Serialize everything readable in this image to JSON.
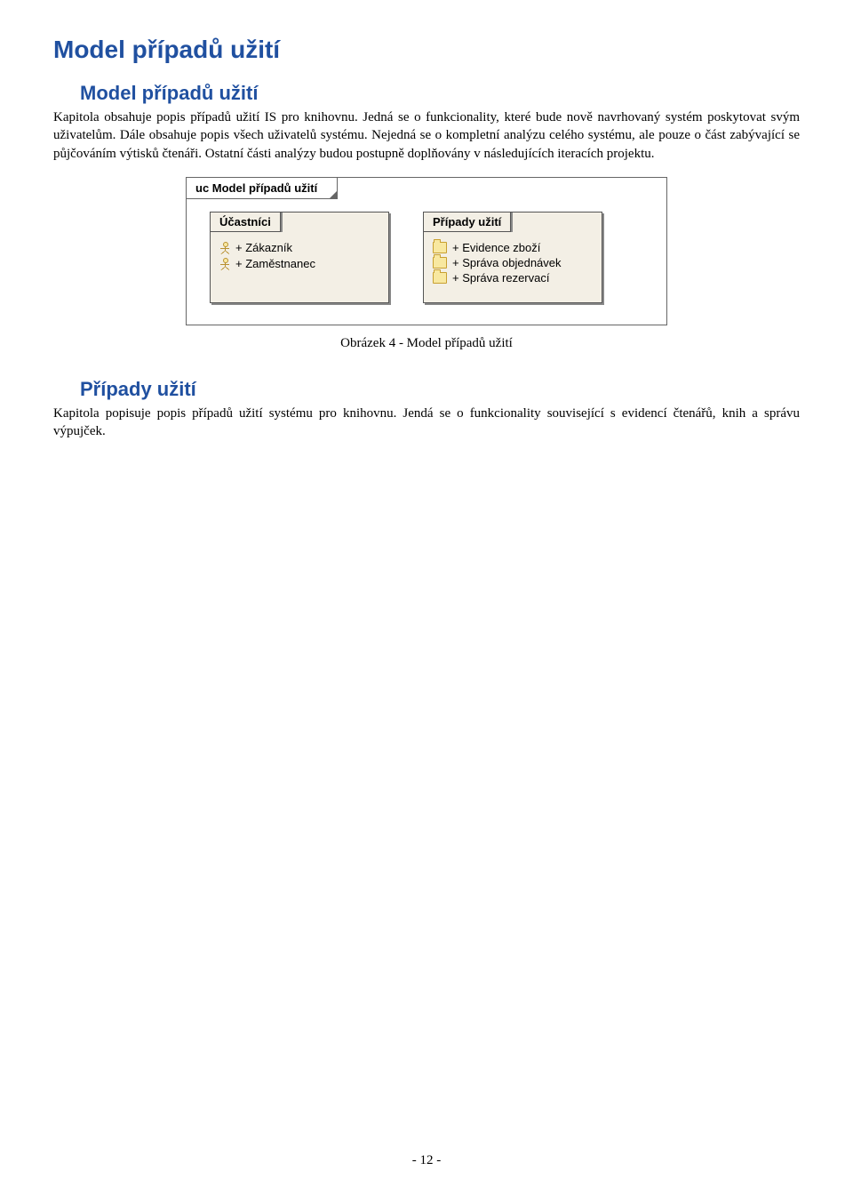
{
  "title": "Model případů užití",
  "section1": {
    "heading": "Model případů užití",
    "paragraph": "Kapitola obsahuje popis případů užití IS pro knihovnu. Jedná se o funkcionality, které bude nově navrhovaný systém poskytovat svým uživatelům. Dále obsahuje popis všech uživatelů systému. Nejedná se o kompletní analýzu celého systému, ale pouze o část zabývající se půjčováním výtisků čtenáři. Ostatní části analýzy budou postupně doplňovány v následujících iteracích projektu."
  },
  "diagram": {
    "frame_label": "uc Model případů užití",
    "packages": [
      {
        "name": "Účastníci",
        "items": [
          {
            "icon": "actor",
            "label": "+ Zákazník"
          },
          {
            "icon": "actor",
            "label": "+ Zaměstnanec"
          }
        ]
      },
      {
        "name": "Případy užití",
        "items": [
          {
            "icon": "folder",
            "label": "+ Evidence zboží"
          },
          {
            "icon": "folder",
            "label": "+ Správa objednávek"
          },
          {
            "icon": "folder",
            "label": "+ Správa rezervací"
          }
        ]
      }
    ],
    "caption": "Obrázek 4 - Model případů užití",
    "colors": {
      "heading_color": "#2050a0",
      "package_bg": "#f3efe5",
      "package_border": "#555555",
      "icon_fill": "#f8e8a0",
      "icon_stroke": "#c8a030"
    }
  },
  "section2": {
    "heading": "Případy užití",
    "paragraph": "Kapitola popisuje popis případů užití systému pro knihovnu. Jendá se o funkcionality související s evidencí čtenářů, knih a správu výpujček."
  },
  "page_number": "- 12 -"
}
